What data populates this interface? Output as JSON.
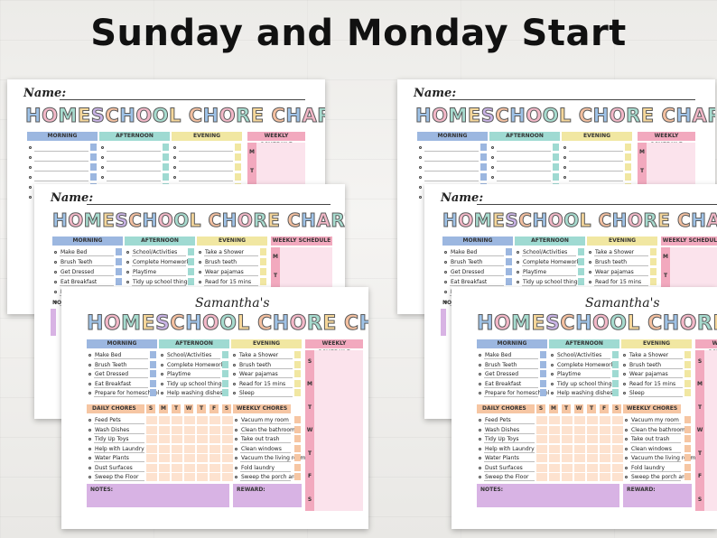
{
  "heading": "Sunday and Monday Start",
  "name_label": "Name:",
  "chart_title": "HOMESCHOOL CHORE CHART",
  "personal_name": "Samantha's",
  "colors": {
    "morning": "#9cb7e0",
    "afternoon": "#9fdad2",
    "evening": "#f1e7a2",
    "weekly": "#f2a9be",
    "weekly_bg": "#fbe3ec",
    "daily": "#f6c6a3",
    "daily_bg": "#fde2cf",
    "notes": "#d8b3e4",
    "title_letters": [
      "#9fc3e8",
      "#f3b8c8",
      "#a7dccf",
      "#f6d79a",
      "#c9b3e6",
      "#f4c0a0"
    ]
  },
  "headers": {
    "morning": "MORNING",
    "afternoon": "AFTERNOON",
    "evening": "EVENING",
    "weekly": "WEEKLY SCHEDULE",
    "daily": "DAILY CHORES",
    "weekly_chores": "WEEKLY CHORES",
    "notes": "NOTES:",
    "reward": "REWARD:",
    "notes_short": "NOT"
  },
  "morning_items": [
    "Make Bed",
    "Brush Teeth",
    "Get Dressed",
    "Eat Breakfast",
    "Prepare for homeschool"
  ],
  "afternoon_items": [
    "School/Activities",
    "Complete Homework",
    "Playtime",
    "Tidy up school things",
    "Help washing dishes"
  ],
  "evening_items": [
    "Take a Shower",
    "Brush teeth",
    "Wear pajamas",
    "Read for 15 mins",
    "Sleep"
  ],
  "daily_chores": [
    "Feed Pets",
    "Wash Dishes",
    "Tidy Up Toys",
    "Help with Laundry",
    "Water Plants",
    "Dust Surfaces",
    "Sweep the Floor"
  ],
  "weekly_chores": [
    "Vacuum my room",
    "Clean the bathroom",
    "Take out trash",
    "Clean windows",
    "Vacuum the living room",
    "Fold laundry",
    "Sweep the porch area"
  ],
  "grid_days_sunday": [
    "S",
    "M",
    "T",
    "W",
    "T",
    "F",
    "S"
  ],
  "weekly_days_sunday": [
    "S",
    "M",
    "T",
    "W",
    "T",
    "F",
    "S"
  ],
  "weekly_days_monday": [
    "M",
    "T",
    "W",
    "T",
    "F",
    "S"
  ],
  "back_weekly_visible": [
    "M",
    "T"
  ]
}
